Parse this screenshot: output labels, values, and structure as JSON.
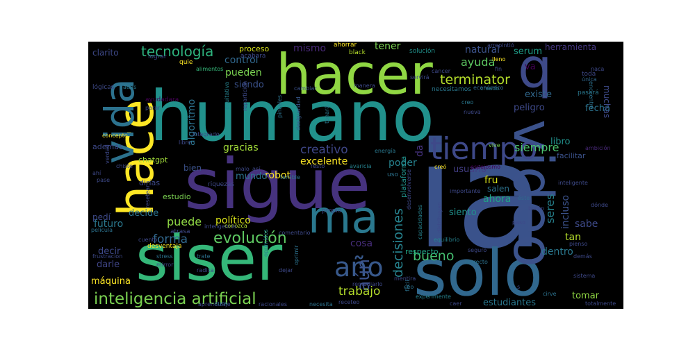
{
  "wordcloud": {
    "background": "#000000",
    "palette": "viridis",
    "words": [
      {
        "text": "ia",
        "color": "#3a528b"
      },
      {
        "text": "humano",
        "color": "#21918c"
      },
      {
        "text": "solo",
        "color": "#31688e"
      },
      {
        "text": "sigue",
        "color": "#46327e"
      },
      {
        "text": "siser",
        "color": "#35b779"
      },
      {
        "text": "hacer",
        "color": "#90d743"
      },
      {
        "text": "hace",
        "color": "#fde725"
      },
      {
        "text": "q",
        "color": "#3e4a89"
      },
      {
        "text": "video",
        "color": "#3b528b"
      },
      {
        "text": "vida",
        "color": "#2c728e"
      },
      {
        "text": "ma",
        "color": "#2a788e"
      },
      {
        "text": "tiempo",
        "color": "#3e4989"
      },
      {
        "text": "año",
        "color": "#38598c"
      },
      {
        "text": "inteligencia artificial",
        "color": "#7ad151"
      },
      {
        "text": "tecnología",
        "color": "#2db27d"
      },
      {
        "text": "evolución",
        "color": "#5ec962"
      },
      {
        "text": "terminator",
        "color": "#b5de2b"
      },
      {
        "text": "decisiones",
        "color": "#26828e"
      },
      {
        "text": "aún",
        "color": "#3b528b"
      },
      {
        "text": "bueno",
        "color": "#44bf70"
      },
      {
        "text": "trabajo",
        "color": "#b5de2b"
      },
      {
        "text": "creativo",
        "color": "#3f4788"
      },
      {
        "text": "excelente",
        "color": "#fde725"
      },
      {
        "text": "gracias",
        "color": "#a0da39"
      },
      {
        "text": "forma",
        "color": "#31688e"
      },
      {
        "text": "puede",
        "color": "#8fd744"
      },
      {
        "text": "político",
        "color": "#d8e219"
      },
      {
        "text": "futuro",
        "color": "#2a788e"
      },
      {
        "text": "decir",
        "color": "#3e4989"
      },
      {
        "text": "darle",
        "color": "#404688"
      },
      {
        "text": "máquina",
        "color": "#fde725"
      },
      {
        "text": "cosa",
        "color": "#472d7b"
      },
      {
        "text": "siempre",
        "color": "#4ac16d"
      },
      {
        "text": "ayuda",
        "color": "#5ec962"
      },
      {
        "text": "natural",
        "color": "#3b528b"
      },
      {
        "text": "tener",
        "color": "#7ad151"
      },
      {
        "text": "mismo",
        "color": "#482878"
      },
      {
        "text": "control",
        "color": "#31688e"
      },
      {
        "text": "pueden",
        "color": "#7ad151"
      },
      {
        "text": "siendo",
        "color": "#3b528b"
      },
      {
        "text": "algoritmo",
        "color": "#2c728e"
      },
      {
        "text": "robot",
        "color": "#fde725"
      },
      {
        "text": "mundo",
        "color": "#2c728e"
      },
      {
        "text": "poder",
        "color": "#26828e"
      },
      {
        "text": "fru",
        "color": "#d8e219"
      },
      {
        "text": "usuario",
        "color": "#433e85"
      },
      {
        "text": "seres",
        "color": "#26828e"
      },
      {
        "text": "incluso",
        "color": "#3b528b"
      },
      {
        "text": "ahora",
        "color": "#20a486"
      },
      {
        "text": "siento",
        "color": "#21918c"
      },
      {
        "text": "sabe",
        "color": "#3e4a89"
      },
      {
        "text": "tan",
        "color": "#b5de2b"
      },
      {
        "text": "dentro",
        "color": "#2a788e"
      },
      {
        "text": "tomar",
        "color": "#90d743"
      },
      {
        "text": "estudiantes",
        "color": "#2a788e"
      },
      {
        "text": "peligro",
        "color": "#3e4989"
      },
      {
        "text": "fecha",
        "color": "#2c728e"
      },
      {
        "text": "muchas",
        "color": "#3e4a89"
      },
      {
        "text": "herramienta",
        "color": "#453781"
      },
      {
        "text": "serum",
        "color": "#1f9e89"
      },
      {
        "text": "va",
        "color": "#440154"
      },
      {
        "text": "existe",
        "color": "#31688e"
      },
      {
        "text": "libro",
        "color": "#21918c"
      },
      {
        "text": "da",
        "color": "#46327e"
      },
      {
        "text": "decide",
        "color": "#2c728e"
      },
      {
        "text": "pedí",
        "color": "#3e4a89"
      },
      {
        "text": "bien",
        "color": "#3b528b"
      },
      {
        "text": "chatgpt",
        "color": "#a0da39"
      },
      {
        "text": "además",
        "color": "#3e4989"
      },
      {
        "text": "dirías",
        "color": "#3e4a89"
      },
      {
        "text": "respecto",
        "color": "#20a486"
      },
      {
        "text": "clarito",
        "color": "#3e4989"
      },
      {
        "text": "proceso",
        "color": "#d8e219"
      },
      {
        "text": "plataforma",
        "color": "#21918c"
      },
      {
        "text": "salen",
        "color": "#2c728e"
      },
      {
        "text": "estudio",
        "color": "#7ad151"
      },
      {
        "text": "facilitar",
        "color": "#3b528b"
      },
      {
        "text": "necesitamos",
        "color": "#2a788e"
      },
      {
        "text": "cancer",
        "color": "#3e4989"
      },
      {
        "text": "solución",
        "color": "#21918c"
      },
      {
        "text": "ahorrar",
        "color": "#fde725"
      },
      {
        "text": "black",
        "color": "#b5de2b"
      },
      {
        "text": "lograr",
        "color": "#3e4989"
      },
      {
        "text": "acabara",
        "color": "#3e4a89"
      },
      {
        "text": "alimentos",
        "color": "#35b779"
      },
      {
        "text": "lógicas",
        "color": "#3e4a89"
      },
      {
        "text": "atlas",
        "color": "#2a788e"
      },
      {
        "text": "ayudadara",
        "color": "#440154"
      },
      {
        "text": "parar",
        "color": "#3e4989"
      },
      {
        "text": "quie",
        "color": "#fde725"
      },
      {
        "text": "arrepintió",
        "color": "#3e4989"
      },
      {
        "text": "lleno",
        "color": "#fde725"
      },
      {
        "text": "fin",
        "color": "#3e4989"
      },
      {
        "text": "naca",
        "color": "#3e4989"
      },
      {
        "text": "única",
        "color": "#31688e"
      },
      {
        "text": "toda",
        "color": "#3e4a89"
      },
      {
        "text": "pasará",
        "color": "#2a788e"
      },
      {
        "text": "encuentre",
        "color": "#2c728e"
      },
      {
        "text": "económico",
        "color": "#31688e"
      },
      {
        "text": "creado",
        "color": "#2a788e"
      },
      {
        "text": "servirá",
        "color": "#3e4989"
      },
      {
        "text": "cambiar",
        "color": "#3b528b"
      },
      {
        "text": "manera",
        "color": "#3e4989"
      },
      {
        "text": "equitativa",
        "color": "#26828e"
      },
      {
        "text": "repartición",
        "color": "#3e4989"
      },
      {
        "text": "pinceles",
        "color": "#2c728e"
      },
      {
        "text": "desigualdad",
        "color": "#38598c"
      },
      {
        "text": "tonará",
        "color": "#2a788e"
      },
      {
        "text": "creo",
        "color": "#2a788e"
      },
      {
        "text": "nueva",
        "color": "#3e4989"
      },
      {
        "text": "vive",
        "color": "#7ad151"
      },
      {
        "text": "ambición",
        "color": "#482878"
      },
      {
        "text": "integrado",
        "color": "#3e4a89"
      },
      {
        "text": "libre",
        "color": "#3e4989"
      },
      {
        "text": "concepto",
        "color": "#fde725"
      },
      {
        "text": "verdad",
        "color": "#3e4989"
      },
      {
        "text": "chiste",
        "color": "#3e4989"
      },
      {
        "text": "ahí",
        "color": "#3e4989"
      },
      {
        "text": "pase",
        "color": "#3e4a89"
      },
      {
        "text": "película",
        "color": "#2c728e"
      },
      {
        "text": "riquezas",
        "color": "#3e4989"
      },
      {
        "text": "malo",
        "color": "#3e4989"
      },
      {
        "text": "así",
        "color": "#3e4989"
      },
      {
        "text": "terrible",
        "color": "#2c728e"
      },
      {
        "text": "resto",
        "color": "#3e4989"
      },
      {
        "text": "avaricia",
        "color": "#26828e"
      },
      {
        "text": "energía",
        "color": "#2a788e"
      },
      {
        "text": "uso",
        "color": "#2c728e"
      },
      {
        "text": "propio",
        "color": "#3e4989"
      },
      {
        "text": "comentario",
        "color": "#3e4989"
      },
      {
        "text": "conozca",
        "color": "#b5de2b"
      },
      {
        "text": "resetear",
        "color": "#3e4a89"
      },
      {
        "text": "inteligencia",
        "color": "#3e4989"
      },
      {
        "text": "atrasa",
        "color": "#3e4989"
      },
      {
        "text": "desventaja",
        "color": "#fde725"
      },
      {
        "text": "cuento",
        "color": "#3e4989"
      },
      {
        "text": "frustracion",
        "color": "#3e4989"
      },
      {
        "text": "stress",
        "color": "#2c728e"
      },
      {
        "text": "trate",
        "color": "#2c728e"
      },
      {
        "text": "mirror",
        "color": "#3e4989"
      },
      {
        "text": "radica",
        "color": "#3e4989"
      },
      {
        "text": "aprendizaje",
        "color": "#3e4989"
      },
      {
        "text": "oprimidos",
        "color": "#26828e"
      },
      {
        "text": "racionales",
        "color": "#3e4989"
      },
      {
        "text": "necesita",
        "color": "#2c728e"
      },
      {
        "text": "remediarlo",
        "color": "#3e4989"
      },
      {
        "text": "receteo",
        "color": "#3e4989"
      },
      {
        "text": "cura",
        "color": "#2c728e"
      },
      {
        "text": "dejar",
        "color": "#3e4989"
      },
      {
        "text": "oprimir",
        "color": "#2c728e"
      },
      {
        "text": "mentira",
        "color": "#3e4989"
      },
      {
        "text": "ceo",
        "color": "#2c728e"
      },
      {
        "text": "caer",
        "color": "#3e4989"
      },
      {
        "text": "experimente",
        "color": "#26828e"
      },
      {
        "text": "cirve",
        "color": "#2c728e"
      },
      {
        "text": "totalmente",
        "color": "#3e4a89"
      },
      {
        "text": "sistema",
        "color": "#3e4989"
      },
      {
        "text": "demás",
        "color": "#3e4989"
      },
      {
        "text": "seguro",
        "color": "#3e4989"
      },
      {
        "text": "correcto",
        "color": "#2c728e"
      },
      {
        "text": "equilibrio",
        "color": "#26828e"
      },
      {
        "text": "paso",
        "color": "#3e4989"
      },
      {
        "text": "fácil",
        "color": "#2c728e"
      },
      {
        "text": "importante",
        "color": "#3e4989"
      },
      {
        "text": "éste",
        "color": "#31688e"
      },
      {
        "text": "inteligente",
        "color": "#3e4a89"
      },
      {
        "text": "dónde",
        "color": "#3e4989"
      },
      {
        "text": "creó",
        "color": "#fde725"
      },
      {
        "text": "distribuyan",
        "color": "#3e4989"
      },
      {
        "text": "capacidades",
        "color": "#26828e"
      },
      {
        "text": "desenvolverse",
        "color": "#3e4989"
      },
      {
        "text": "botón",
        "color": "#3e4989"
      },
      {
        "text": "espejosmo",
        "color": "#440154"
      },
      {
        "text": "s",
        "color": "#3e4989"
      },
      {
        "text": "pienso",
        "color": "#3e4989"
      }
    ]
  }
}
